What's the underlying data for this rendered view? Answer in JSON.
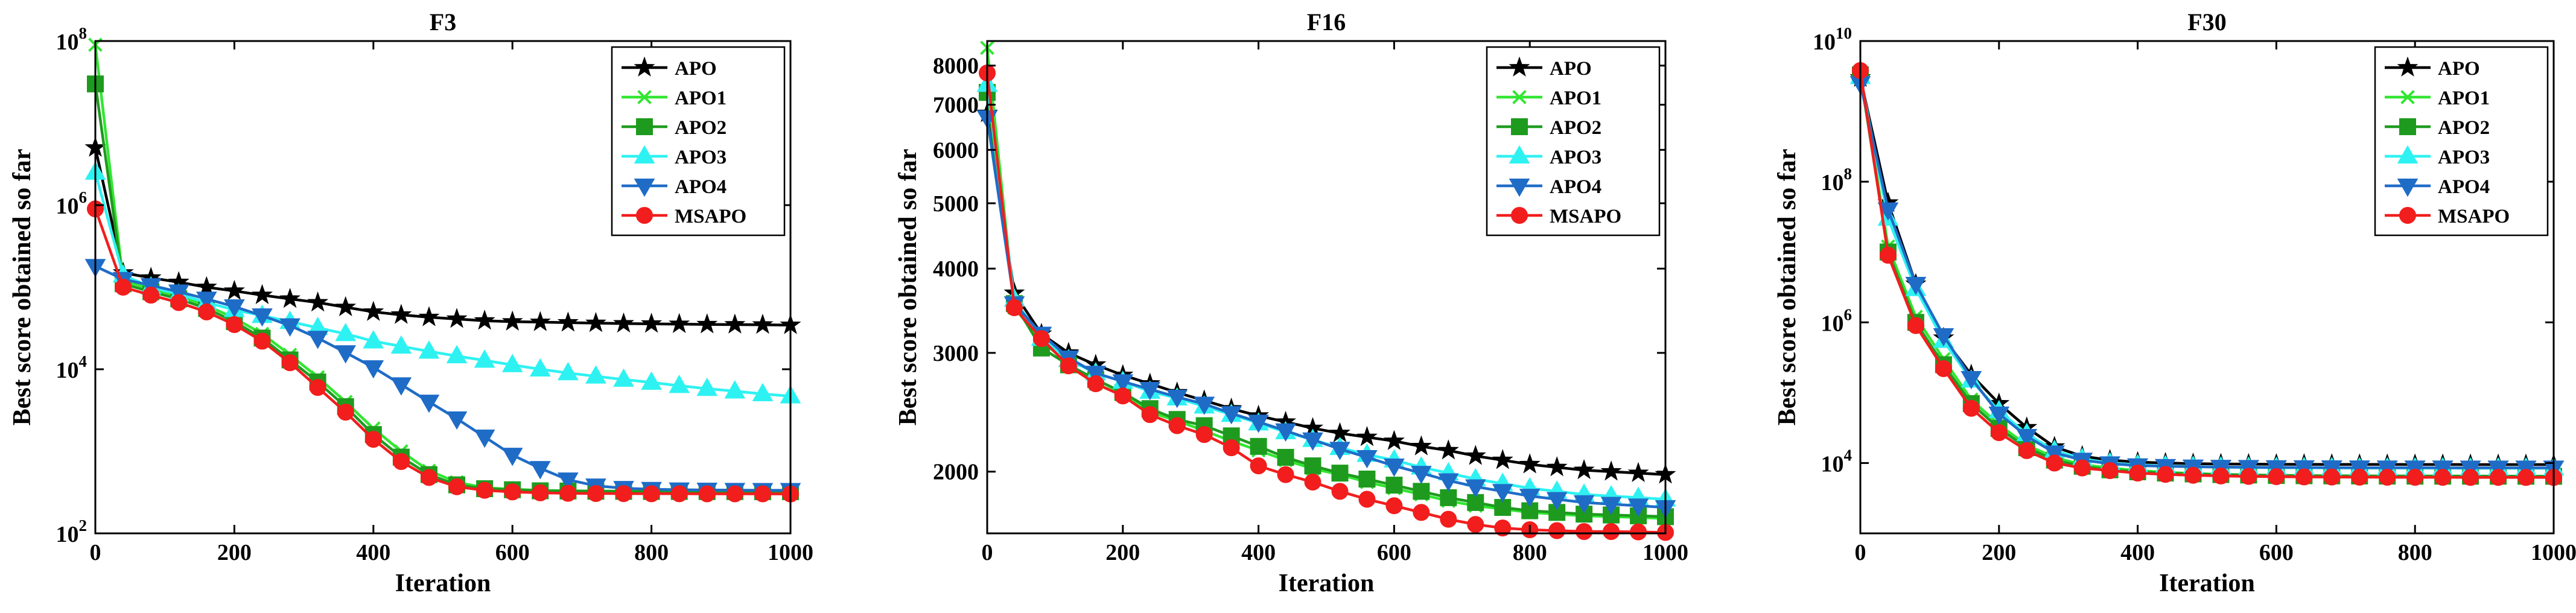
{
  "chart_data": [
    {
      "type": "line",
      "title": "F3",
      "xlabel": "Iteration",
      "ylabel": "Best score obtained so far",
      "yscale": "log",
      "xlim": [
        0,
        1000
      ],
      "ylim": [
        100,
        100000000
      ],
      "xticks": [
        0,
        200,
        400,
        600,
        800,
        1000
      ],
      "yticks": [
        {
          "value": 100,
          "base": "10",
          "exp": "2"
        },
        {
          "value": 10000,
          "base": "10",
          "exp": "4"
        },
        {
          "value": 1000000,
          "base": "10",
          "exp": "6"
        },
        {
          "value": 100000000,
          "base": "10",
          "exp": "8"
        }
      ],
      "legend_position": "top-right",
      "x": [
        0,
        40,
        80,
        120,
        160,
        200,
        240,
        280,
        320,
        360,
        400,
        440,
        480,
        520,
        560,
        600,
        640,
        680,
        720,
        760,
        800,
        840,
        880,
        920,
        960,
        1000
      ],
      "series": [
        {
          "name": "APO",
          "color": "#000000",
          "marker": "star",
          "values": [
            5000000,
            150000,
            130000,
            115000,
            100000,
            90000,
            80000,
            72000,
            65000,
            57000,
            50000,
            46000,
            43000,
            41000,
            39000,
            38000,
            37500,
            37000,
            36500,
            36000,
            35800,
            35500,
            35200,
            35000,
            34800,
            34500
          ]
        },
        {
          "name": "APO1",
          "color": "#32e632",
          "marker": "x",
          "values": [
            90000000,
            120000,
            95000,
            78000,
            60000,
            42000,
            27000,
            15000,
            8000,
            4000,
            1900,
            1000,
            580,
            420,
            360,
            345,
            335,
            330,
            328,
            326,
            325,
            325,
            324,
            324,
            323,
            323
          ]
        },
        {
          "name": "APO2",
          "color": "#1e9b1e",
          "marker": "square",
          "values": [
            30000000,
            110000,
            88000,
            72000,
            55000,
            38000,
            24000,
            13000,
            7000,
            3500,
            1600,
            850,
            520,
            390,
            350,
            340,
            330,
            328,
            326,
            325,
            324,
            324,
            323,
            323,
            322,
            322
          ]
        },
        {
          "name": "APO3",
          "color": "#2ef2f2",
          "marker": "triangle-up",
          "values": [
            2500000,
            140000,
            100000,
            82000,
            65000,
            53000,
            45000,
            38000,
            32000,
            27000,
            22000,
            19000,
            16500,
            14500,
            12800,
            11300,
            10000,
            9000,
            8200,
            7500,
            6900,
            6300,
            5800,
            5400,
            5000,
            4700
          ]
        },
        {
          "name": "APO4",
          "color": "#1f6cc7",
          "marker": "triangle-down",
          "values": [
            180000,
            125000,
            105000,
            88000,
            72000,
            58000,
            45000,
            34000,
            24000,
            16000,
            10500,
            6500,
            4000,
            2500,
            1500,
            900,
            620,
            450,
            380,
            355,
            345,
            340,
            338,
            336,
            335,
            335
          ]
        },
        {
          "name": "MSAPO",
          "color": "#f21d1d",
          "marker": "circle",
          "values": [
            900000,
            100000,
            80000,
            65000,
            50000,
            35000,
            22000,
            12000,
            6000,
            3000,
            1400,
            750,
            480,
            370,
            335,
            320,
            312,
            308,
            306,
            305,
            304,
            304,
            303,
            303,
            303,
            302
          ]
        }
      ]
    },
    {
      "type": "line",
      "title": "F16",
      "xlabel": "Iteration",
      "ylabel": "Best score obtained so far",
      "yscale": "log",
      "xlim": [
        0,
        1000
      ],
      "ylim": [
        1620,
        8700
      ],
      "xticks": [
        0,
        200,
        400,
        600,
        800,
        1000
      ],
      "yticks": [
        {
          "value": 2000,
          "base": "2000",
          "exp": ""
        },
        {
          "value": 3000,
          "base": "3000",
          "exp": ""
        },
        {
          "value": 4000,
          "base": "4000",
          "exp": ""
        },
        {
          "value": 5000,
          "base": "5000",
          "exp": ""
        },
        {
          "value": 6000,
          "base": "6000",
          "exp": ""
        },
        {
          "value": 7000,
          "base": "7000",
          "exp": ""
        },
        {
          "value": 8000,
          "base": "8000",
          "exp": ""
        }
      ],
      "legend_position": "top-right",
      "x": [
        0,
        40,
        80,
        120,
        160,
        200,
        240,
        280,
        320,
        360,
        400,
        440,
        480,
        520,
        560,
        600,
        640,
        680,
        720,
        760,
        800,
        840,
        880,
        920,
        960,
        1000
      ],
      "series": [
        {
          "name": "APO",
          "color": "#000000",
          "marker": "star",
          "values": [
            6800,
            3680,
            3200,
            3000,
            2880,
            2780,
            2700,
            2620,
            2550,
            2480,
            2420,
            2370,
            2320,
            2280,
            2250,
            2220,
            2180,
            2150,
            2110,
            2080,
            2050,
            2030,
            2010,
            2000,
            1990,
            1980
          ]
        },
        {
          "name": "APO1",
          "color": "#32e632",
          "marker": "x",
          "values": [
            8500,
            3500,
            3120,
            2900,
            2700,
            2600,
            2450,
            2380,
            2300,
            2220,
            2150,
            2080,
            2020,
            1980,
            1930,
            1890,
            1850,
            1810,
            1780,
            1760,
            1740,
            1730,
            1720,
            1715,
            1710,
            1705
          ]
        },
        {
          "name": "APO2",
          "color": "#1e9b1e",
          "marker": "square",
          "values": [
            7300,
            3550,
            3050,
            2880,
            2740,
            2620,
            2480,
            2390,
            2340,
            2260,
            2180,
            2100,
            2040,
            1990,
            1950,
            1910,
            1870,
            1830,
            1800,
            1770,
            1750,
            1740,
            1730,
            1725,
            1720,
            1715
          ]
        },
        {
          "name": "APO3",
          "color": "#2ef2f2",
          "marker": "triangle-up",
          "values": [
            7500,
            3600,
            3150,
            2930,
            2800,
            2720,
            2630,
            2570,
            2500,
            2430,
            2360,
            2290,
            2230,
            2170,
            2120,
            2080,
            2030,
            1990,
            1950,
            1920,
            1890,
            1870,
            1850,
            1840,
            1830,
            1820
          ]
        },
        {
          "name": "APO4",
          "color": "#1f6cc7",
          "marker": "triangle-down",
          "values": [
            6700,
            3550,
            3200,
            2950,
            2800,
            2720,
            2650,
            2580,
            2520,
            2440,
            2370,
            2300,
            2230,
            2160,
            2100,
            2040,
            1990,
            1940,
            1900,
            1870,
            1840,
            1820,
            1800,
            1790,
            1780,
            1770
          ]
        },
        {
          "name": "MSAPO",
          "color": "#f21d1d",
          "marker": "circle",
          "values": [
            7800,
            3500,
            3150,
            2870,
            2700,
            2590,
            2430,
            2340,
            2270,
            2170,
            2040,
            1980,
            1930,
            1870,
            1820,
            1780,
            1740,
            1700,
            1670,
            1650,
            1640,
            1635,
            1630,
            1630,
            1628,
            1625
          ]
        }
      ]
    },
    {
      "type": "line",
      "title": "F30",
      "xlabel": "Iteration",
      "ylabel": "Best score obtained so far",
      "yscale": "log",
      "xlim": [
        0,
        1000
      ],
      "ylim": [
        1000,
        10000000000
      ],
      "xticks": [
        0,
        200,
        400,
        600,
        800,
        1000
      ],
      "yticks": [
        {
          "value": 10000,
          "base": "10",
          "exp": "4"
        },
        {
          "value": 1000000,
          "base": "10",
          "exp": "6"
        },
        {
          "value": 100000000,
          "base": "10",
          "exp": "8"
        },
        {
          "value": 10000000000,
          "base": "10",
          "exp": "10"
        }
      ],
      "legend_position": "top-right",
      "x": [
        0,
        40,
        80,
        120,
        160,
        200,
        240,
        280,
        320,
        360,
        400,
        440,
        480,
        520,
        560,
        600,
        640,
        680,
        720,
        760,
        800,
        840,
        880,
        920,
        960,
        1000
      ],
      "series": [
        {
          "name": "APO",
          "color": "#000000",
          "marker": "star",
          "values": [
            3000000000,
            50000000,
            3500000,
            600000,
            180000,
            70000,
            32000,
            17000,
            12500,
            11000,
            10300,
            10000,
            9800,
            9700,
            9650,
            9600,
            9580,
            9560,
            9550,
            9540,
            9530,
            9520,
            9510,
            9505,
            9500,
            9500
          ]
        },
        {
          "name": "APO1",
          "color": "#32e632",
          "marker": "x",
          "values": [
            3600000000,
            12000000,
            1200000,
            300000,
            80000,
            35000,
            18000,
            12000,
            9500,
            8500,
            7800,
            7400,
            7100,
            6900,
            6800,
            6700,
            6650,
            6600,
            6580,
            6560,
            6550,
            6540,
            6530,
            6520,
            6510,
            6500
          ]
        },
        {
          "name": "APO2",
          "color": "#1e9b1e",
          "marker": "square",
          "values": [
            3300000000,
            10000000,
            1000000,
            250000,
            70000,
            31000,
            16500,
            11000,
            9000,
            8000,
            7500,
            7200,
            7000,
            6850,
            6750,
            6650,
            6600,
            6560,
            6540,
            6520,
            6510,
            6500,
            6495,
            6490,
            6485,
            6480
          ]
        },
        {
          "name": "APO3",
          "color": "#2ef2f2",
          "marker": "triangle-up",
          "values": [
            3100000000,
            30000000,
            3000000,
            550000,
            150000,
            55000,
            26000,
            15000,
            11500,
            10000,
            9400,
            9100,
            8900,
            8750,
            8650,
            8600,
            8550,
            8520,
            8500,
            8480,
            8470,
            8460,
            8450,
            8445,
            8440,
            8440
          ]
        },
        {
          "name": "APO4",
          "color": "#1f6cc7",
          "marker": "triangle-down",
          "values": [
            2500000000,
            40000000,
            3500000,
            650000,
            160000,
            50000,
            24000,
            14000,
            11000,
            9800,
            9200,
            9000,
            8850,
            8750,
            8700,
            8650,
            8620,
            8600,
            8580,
            8570,
            8560,
            8550,
            8545,
            8540,
            8535,
            8530
          ]
        },
        {
          "name": "MSAPO",
          "color": "#f21d1d",
          "marker": "circle",
          "values": [
            3800000000,
            9000000,
            900000,
            220000,
            60000,
            27000,
            15000,
            10000,
            8500,
            7800,
            7200,
            6900,
            6700,
            6550,
            6450,
            6400,
            6350,
            6320,
            6300,
            6280,
            6270,
            6260,
            6250,
            6245,
            6240,
            6240
          ]
        }
      ]
    }
  ]
}
